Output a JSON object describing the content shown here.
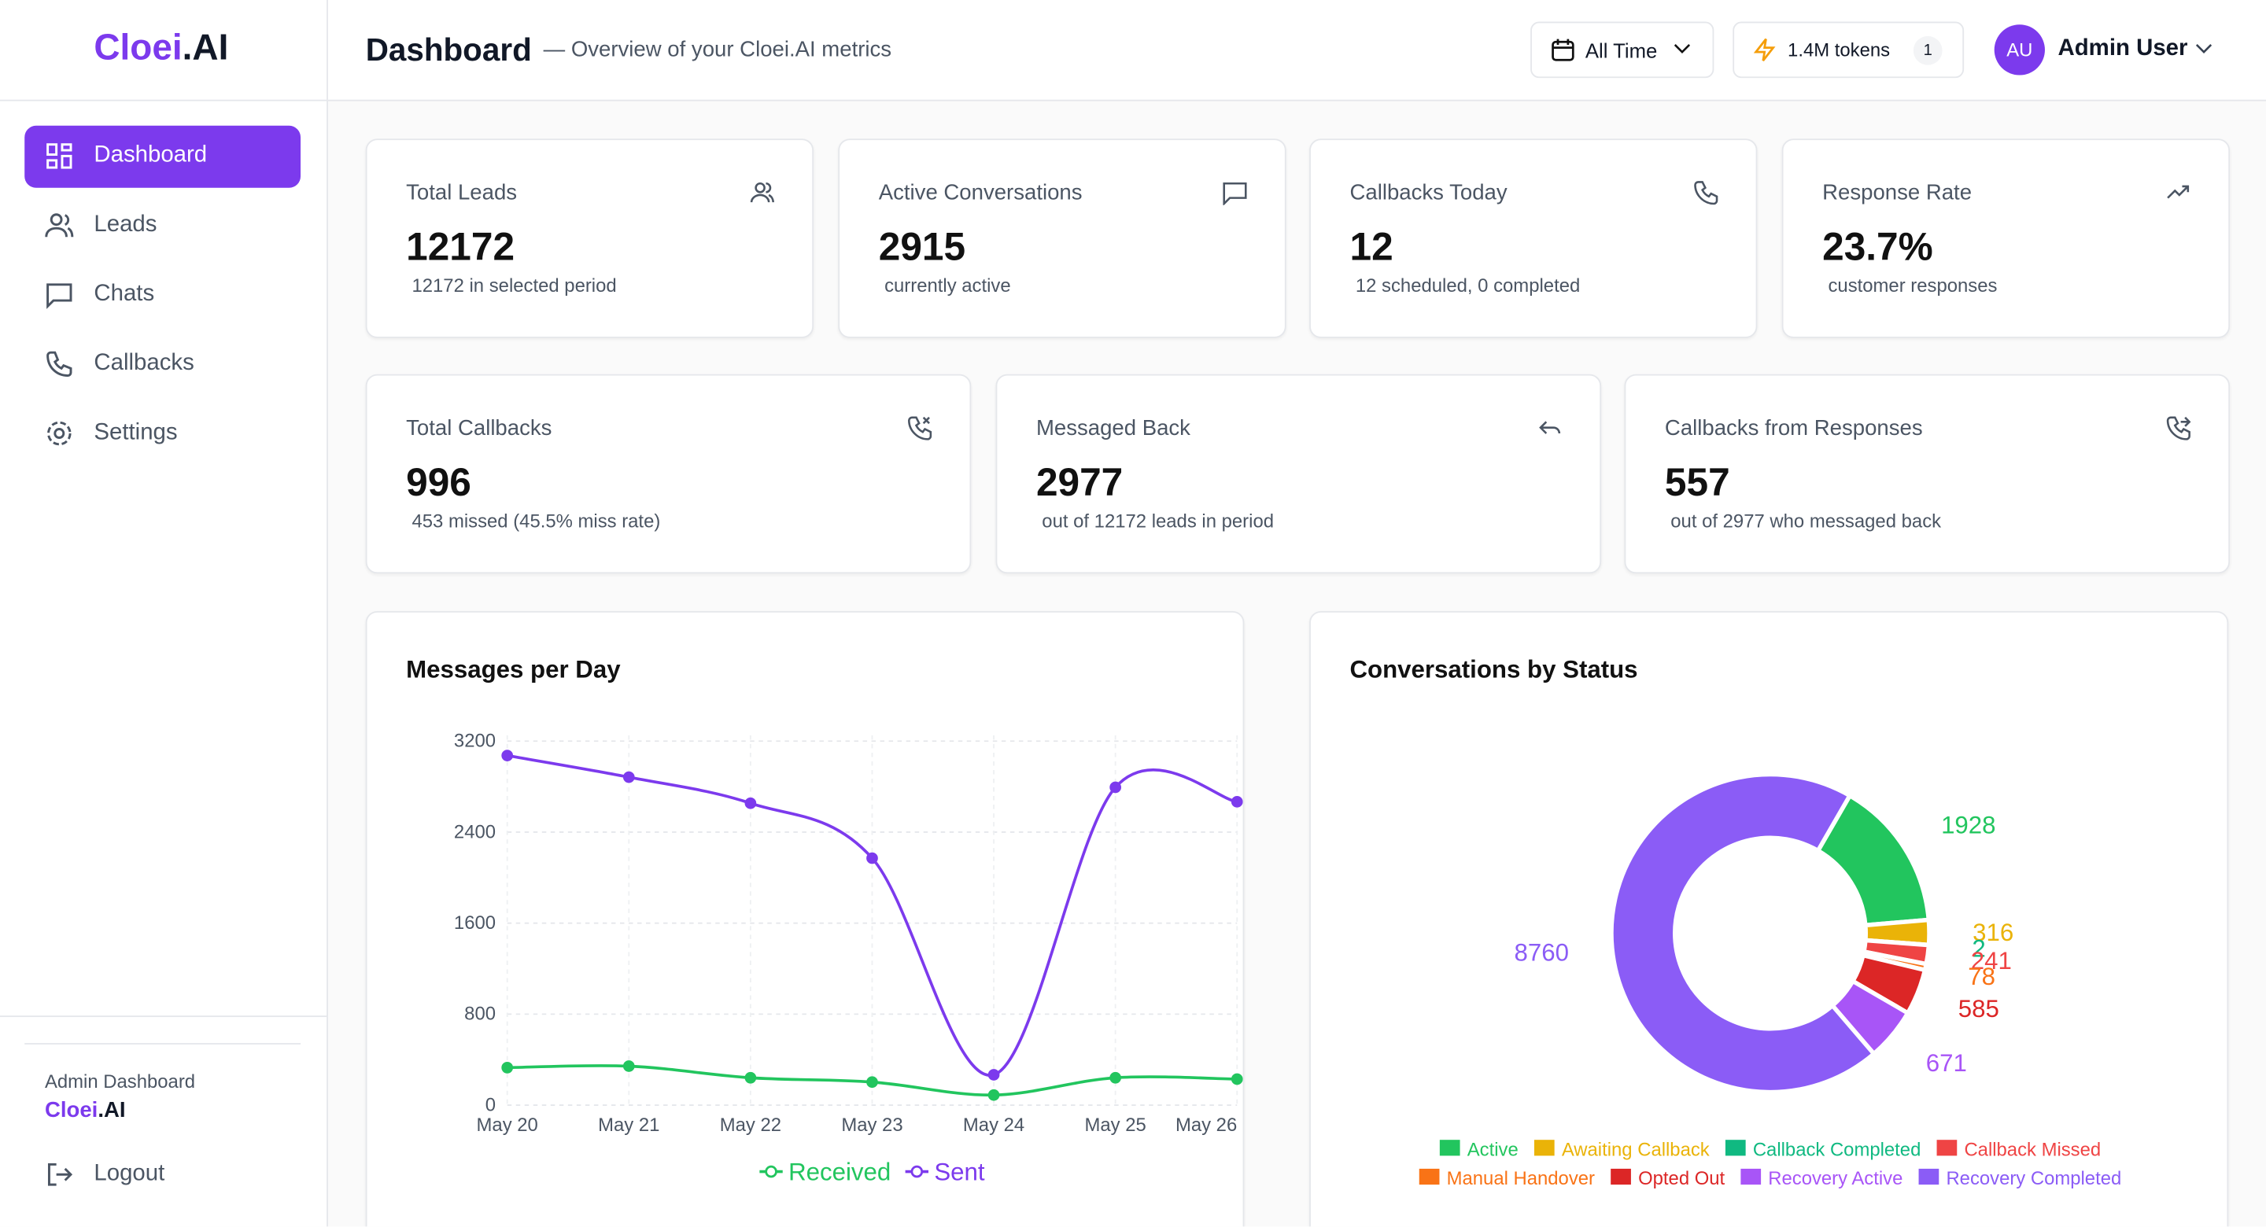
{
  "brand": [
    "Cloei",
    ".AI"
  ],
  "header": {
    "title": "Dashboard",
    "subtitle": "— Overview of your Cloei.AI metrics",
    "range": "All Time",
    "tokens": "1.4M tokens",
    "token_badge": "1",
    "avatar": "AU",
    "user": "Admin User"
  },
  "nav": [
    "Dashboard",
    "Leads",
    "Chats",
    "Callbacks",
    "Settings"
  ],
  "sidebar_footer": {
    "label": "Admin Dashboard",
    "brand": [
      "Cloei",
      ".AI"
    ],
    "logout": "Logout"
  },
  "cards": [
    {
      "label": "Total Leads",
      "value": "12172",
      "note": "12172 in selected period"
    },
    {
      "label": "Active Conversations",
      "value": "2915",
      "note": "currently active"
    },
    {
      "label": "Callbacks Today",
      "value": "12",
      "note": "12 scheduled, 0 completed"
    },
    {
      "label": "Response Rate",
      "value": "23.7%",
      "note": "customer responses"
    },
    {
      "label": "Total Callbacks",
      "value": "996",
      "note": "453 missed (45.5% miss rate)"
    },
    {
      "label": "Messaged Back",
      "value": "2977",
      "note": "out of 12172 leads in period"
    },
    {
      "label": "Callbacks from Responses",
      "value": "557",
      "note": "out of 2977 who messaged back"
    }
  ],
  "chart_data": [
    {
      "type": "line",
      "title": "Messages per Day",
      "categories": [
        "May 20",
        "May 21",
        "May 22",
        "May 23",
        "May 24",
        "May 25",
        "May 26"
      ],
      "series": [
        {
          "name": "Received",
          "color": "#22c55e",
          "values": [
            330,
            343,
            241,
            203,
            89,
            241,
            229
          ]
        },
        {
          "name": "Sent",
          "color": "#7c3aed",
          "values": [
            3073,
            2883,
            2654,
            2171,
            267,
            2794,
            2667
          ]
        }
      ],
      "ylim": [
        0,
        3200
      ],
      "yticks": [
        0,
        800,
        1600,
        2400,
        3200
      ],
      "grid": true
    },
    {
      "type": "pie",
      "title": "Conversations by Status",
      "categories": [
        "Active",
        "Awaiting Callback",
        "Callback Completed",
        "Callback Missed",
        "Manual Handover",
        "Opted Out",
        "Recovery Active",
        "Recovery Completed"
      ],
      "values": [
        1928,
        316,
        2,
        241,
        78,
        585,
        671,
        8760
      ],
      "colors": [
        "#22c55e",
        "#eab308",
        "#10b981",
        "#ef4444",
        "#f97316",
        "#dc2626",
        "#a855f7",
        "#8b5cf6"
      ]
    }
  ]
}
